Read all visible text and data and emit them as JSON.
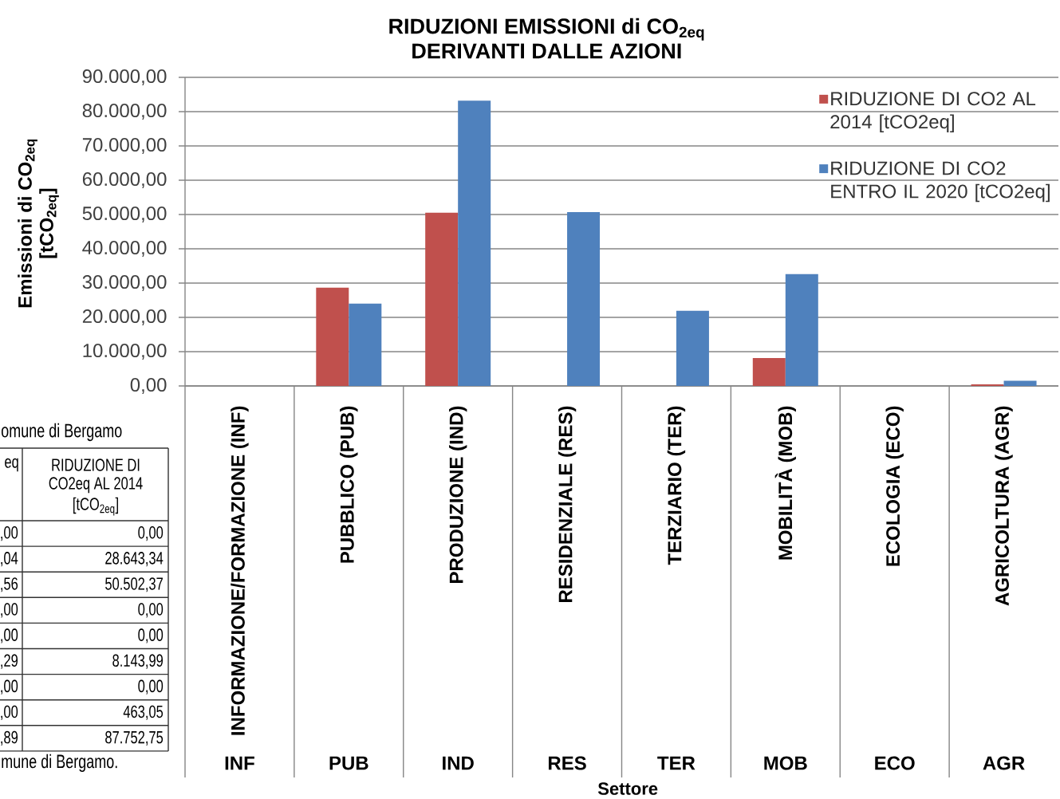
{
  "chart_data": [
    {
      "type": "other",
      "annotations": [
        "omune di Bergamo",
        "eq",
        "RIDUZIONE DI CO2eq AL 2014",
        "[tCO$_{2eq}$]",
        ",00",
        "0,00",
        ",04",
        "28.643,34",
        ",56",
        "50.502,37",
        ",00",
        "0,00",
        ",00",
        "0,00",
        ",29",
        "8.143,99",
        ",00",
        "0,00",
        ",00",
        "463,05",
        ",89",
        "87.752,75",
        "mune di Bergamo."
      ]
    },
    {
      "type": "bar",
      "title": "RIDUZIONI EMISSIONI di CO$_{2eq}$ DERIVANTI DALLE AZIONI",
      "xlabel": "Settore",
      "ylabel": "Emissioni di CO$_{2eq}$ [tCO$_{2eq}$]",
      "categories": [
        "INFORMAZIONE/FORMAZIONE (INF)",
        "PUBBLICO (PUB)",
        "PRODUZIONE (IND)",
        "RESIDENZIALE (RES)",
        "TERZIARIO (TER)",
        "MOBILITÀ (MOB)",
        "ECOLOGIA (ECO)",
        "AGRICOLTURA (AGR)"
      ],
      "series": [
        {
          "name": "RIDUZIONE DI CO2 AL 2014 [tCO2eq]",
          "color": "#c0504d",
          "values": [
            0,
            28643.34,
            50502.37,
            0,
            0,
            8143.99,
            0,
            463.05
          ]
        },
        {
          "name": "RIDUZIONE DI CO2 ENTRO IL 2020 [tCO2eq]",
          "color": "#4f81bd",
          "values": [
            0,
            24000,
            83200,
            50700,
            21900,
            32600,
            0,
            1500
          ]
        }
      ],
      "ylim": [
        0,
        90000
      ],
      "yticks": [
        {
          "value": 0,
          "label": "0,00"
        },
        {
          "value": 10000,
          "label": "10.000,00"
        },
        {
          "value": 20000,
          "label": "20.000,00"
        },
        {
          "value": 30000,
          "label": "30.000,00"
        },
        {
          "value": 40000,
          "label": "40.000,00"
        },
        {
          "value": 50000,
          "label": "50.000,00"
        },
        {
          "value": 60000,
          "label": "60.000,00"
        },
        {
          "value": 70000,
          "label": "70.000,00"
        },
        {
          "value": 80000,
          "label": "80.000,00"
        },
        {
          "value": 90000,
          "label": "90.000,00"
        }
      ],
      "grid": "y",
      "legend": "top right",
      "annotations": [
        "INF",
        "PUB",
        "IND",
        "RES",
        "TER",
        "MOB",
        "ECO",
        "AGR"
      ]
    }
  ]
}
